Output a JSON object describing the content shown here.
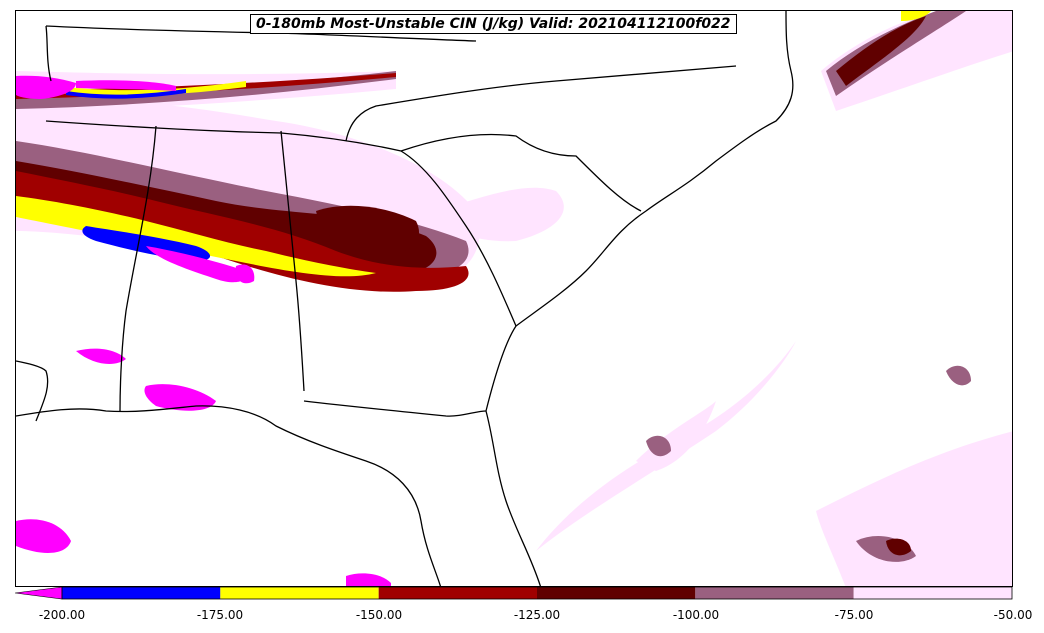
{
  "title": "0-180mb Most-Unstable CIN (J/kg) Valid: 202104112100f022",
  "colorbar": {
    "levels": [
      -200,
      -175,
      -150,
      -125,
      -100,
      -75,
      -50
    ],
    "tick_labels": [
      "-200.00",
      "-175.00",
      "-150.00",
      "-125.00",
      "-100.00",
      "-75.00",
      "-50.00"
    ],
    "colors": {
      "below_min": "#ff00ff",
      "b1": "#0000ff",
      "b2": "#ffff00",
      "b3": "#a00000",
      "b4": "#600000",
      "b5": "#9a6080",
      "b6": "#ffe4ff"
    }
  }
}
